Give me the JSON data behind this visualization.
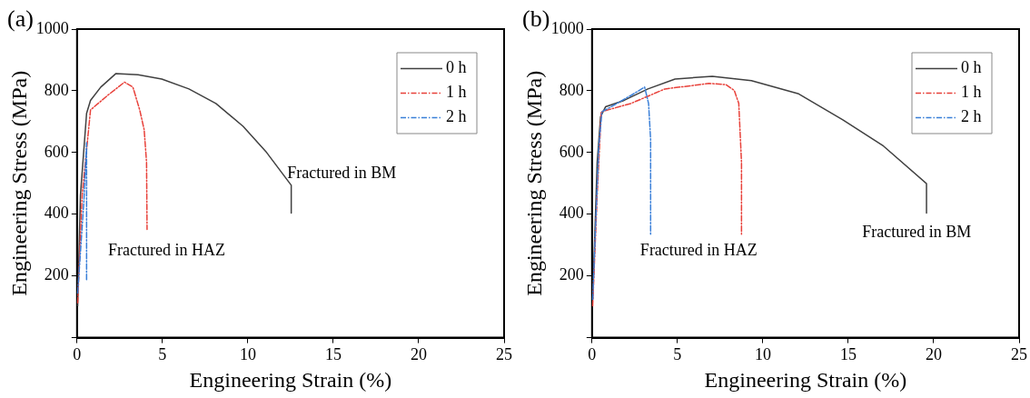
{
  "chart_data": [
    {
      "type": "line",
      "title": "(a)",
      "xlabel": "Engineering Strain (%)",
      "ylabel": "Engineering Stress (MPa)",
      "xlim": [
        0,
        25
      ],
      "xticks": [
        0,
        5,
        10,
        15,
        20,
        25
      ],
      "ylim": [
        0,
        1000
      ],
      "yticks": [
        {
          "value": 0,
          "label": null
        },
        200,
        400,
        600,
        800,
        1000
      ],
      "grid": false,
      "legend": "top right",
      "marker": "none",
      "annotations": [
        "Fractured in BM",
        "Fractured in HAZ"
      ],
      "series": [
        {
          "name": "0 h",
          "color": "#404040",
          "line_style": "solid",
          "x": [
            0.04,
            0.2,
            0.56,
            0.79,
            1.39,
            2.28,
            3.57,
            4.96,
            6.55,
            8.13,
            9.72,
            11.1,
            12.54,
            12.54
          ],
          "values": [
            103,
            462,
            727,
            769,
            812,
            856,
            852,
            838,
            806,
            759,
            685,
            600,
            494,
            404
          ]
        },
        {
          "name": "1 h",
          "color": "#e8413a",
          "line_style": "dashed",
          "x": [
            0.04,
            0.3,
            0.79,
            1.79,
            2.78,
            3.27,
            3.67,
            3.93,
            4.07,
            4.1
          ],
          "values": [
            113,
            462,
            738,
            785,
            828,
            812,
            738,
            674,
            568,
            351
          ]
        },
        {
          "name": "2 h",
          "color": "#3a7fd8",
          "line_style": "dashed",
          "x": [
            0.04,
            0.4,
            0.56,
            0.56
          ],
          "values": [
            145,
            441,
            632,
            185
          ]
        }
      ]
    },
    {
      "type": "line",
      "title": "(b)",
      "xlabel": "Engineering Strain (%)",
      "ylabel": "Engineering Stress (MPa)",
      "xlim": [
        0,
        25
      ],
      "xticks": [
        0,
        5,
        10,
        15,
        20,
        25
      ],
      "ylim": [
        0,
        1000
      ],
      "yticks": [
        {
          "value": 0,
          "label": null
        },
        200,
        400,
        600,
        800,
        1000
      ],
      "grid": false,
      "legend": "top right",
      "marker": "none",
      "annotations": [
        "Fractured in BM",
        "Fractured in HAZ"
      ],
      "series": [
        {
          "name": "0 h",
          "color": "#404040",
          "line_style": "solid",
          "x": [
            0.04,
            0.3,
            0.5,
            0.79,
            1.88,
            3.27,
            4.86,
            7.04,
            9.33,
            12.1,
            14.68,
            17.06,
            19.58,
            19.58
          ],
          "values": [
            124,
            568,
            716,
            748,
            769,
            806,
            838,
            847,
            833,
            790,
            706,
            621,
            499,
            404
          ]
        },
        {
          "name": "1 h",
          "color": "#e8413a",
          "line_style": "dashed",
          "x": [
            0.04,
            0.3,
            0.54,
            2.28,
            4.27,
            6.85,
            7.84,
            8.33,
            8.59,
            8.75,
            8.75
          ],
          "values": [
            103,
            462,
            732,
            759,
            806,
            824,
            820,
            801,
            759,
            568,
            335
          ]
        },
        {
          "name": "2 h",
          "color": "#3a7fd8",
          "line_style": "dashed",
          "x": [
            0.04,
            0.4,
            0.58,
            1.3,
            2.28,
            3.08,
            3.31,
            3.43,
            3.43
          ],
          "values": [
            124,
            621,
            732,
            754,
            785,
            812,
            759,
            642,
            335
          ]
        }
      ]
    }
  ]
}
